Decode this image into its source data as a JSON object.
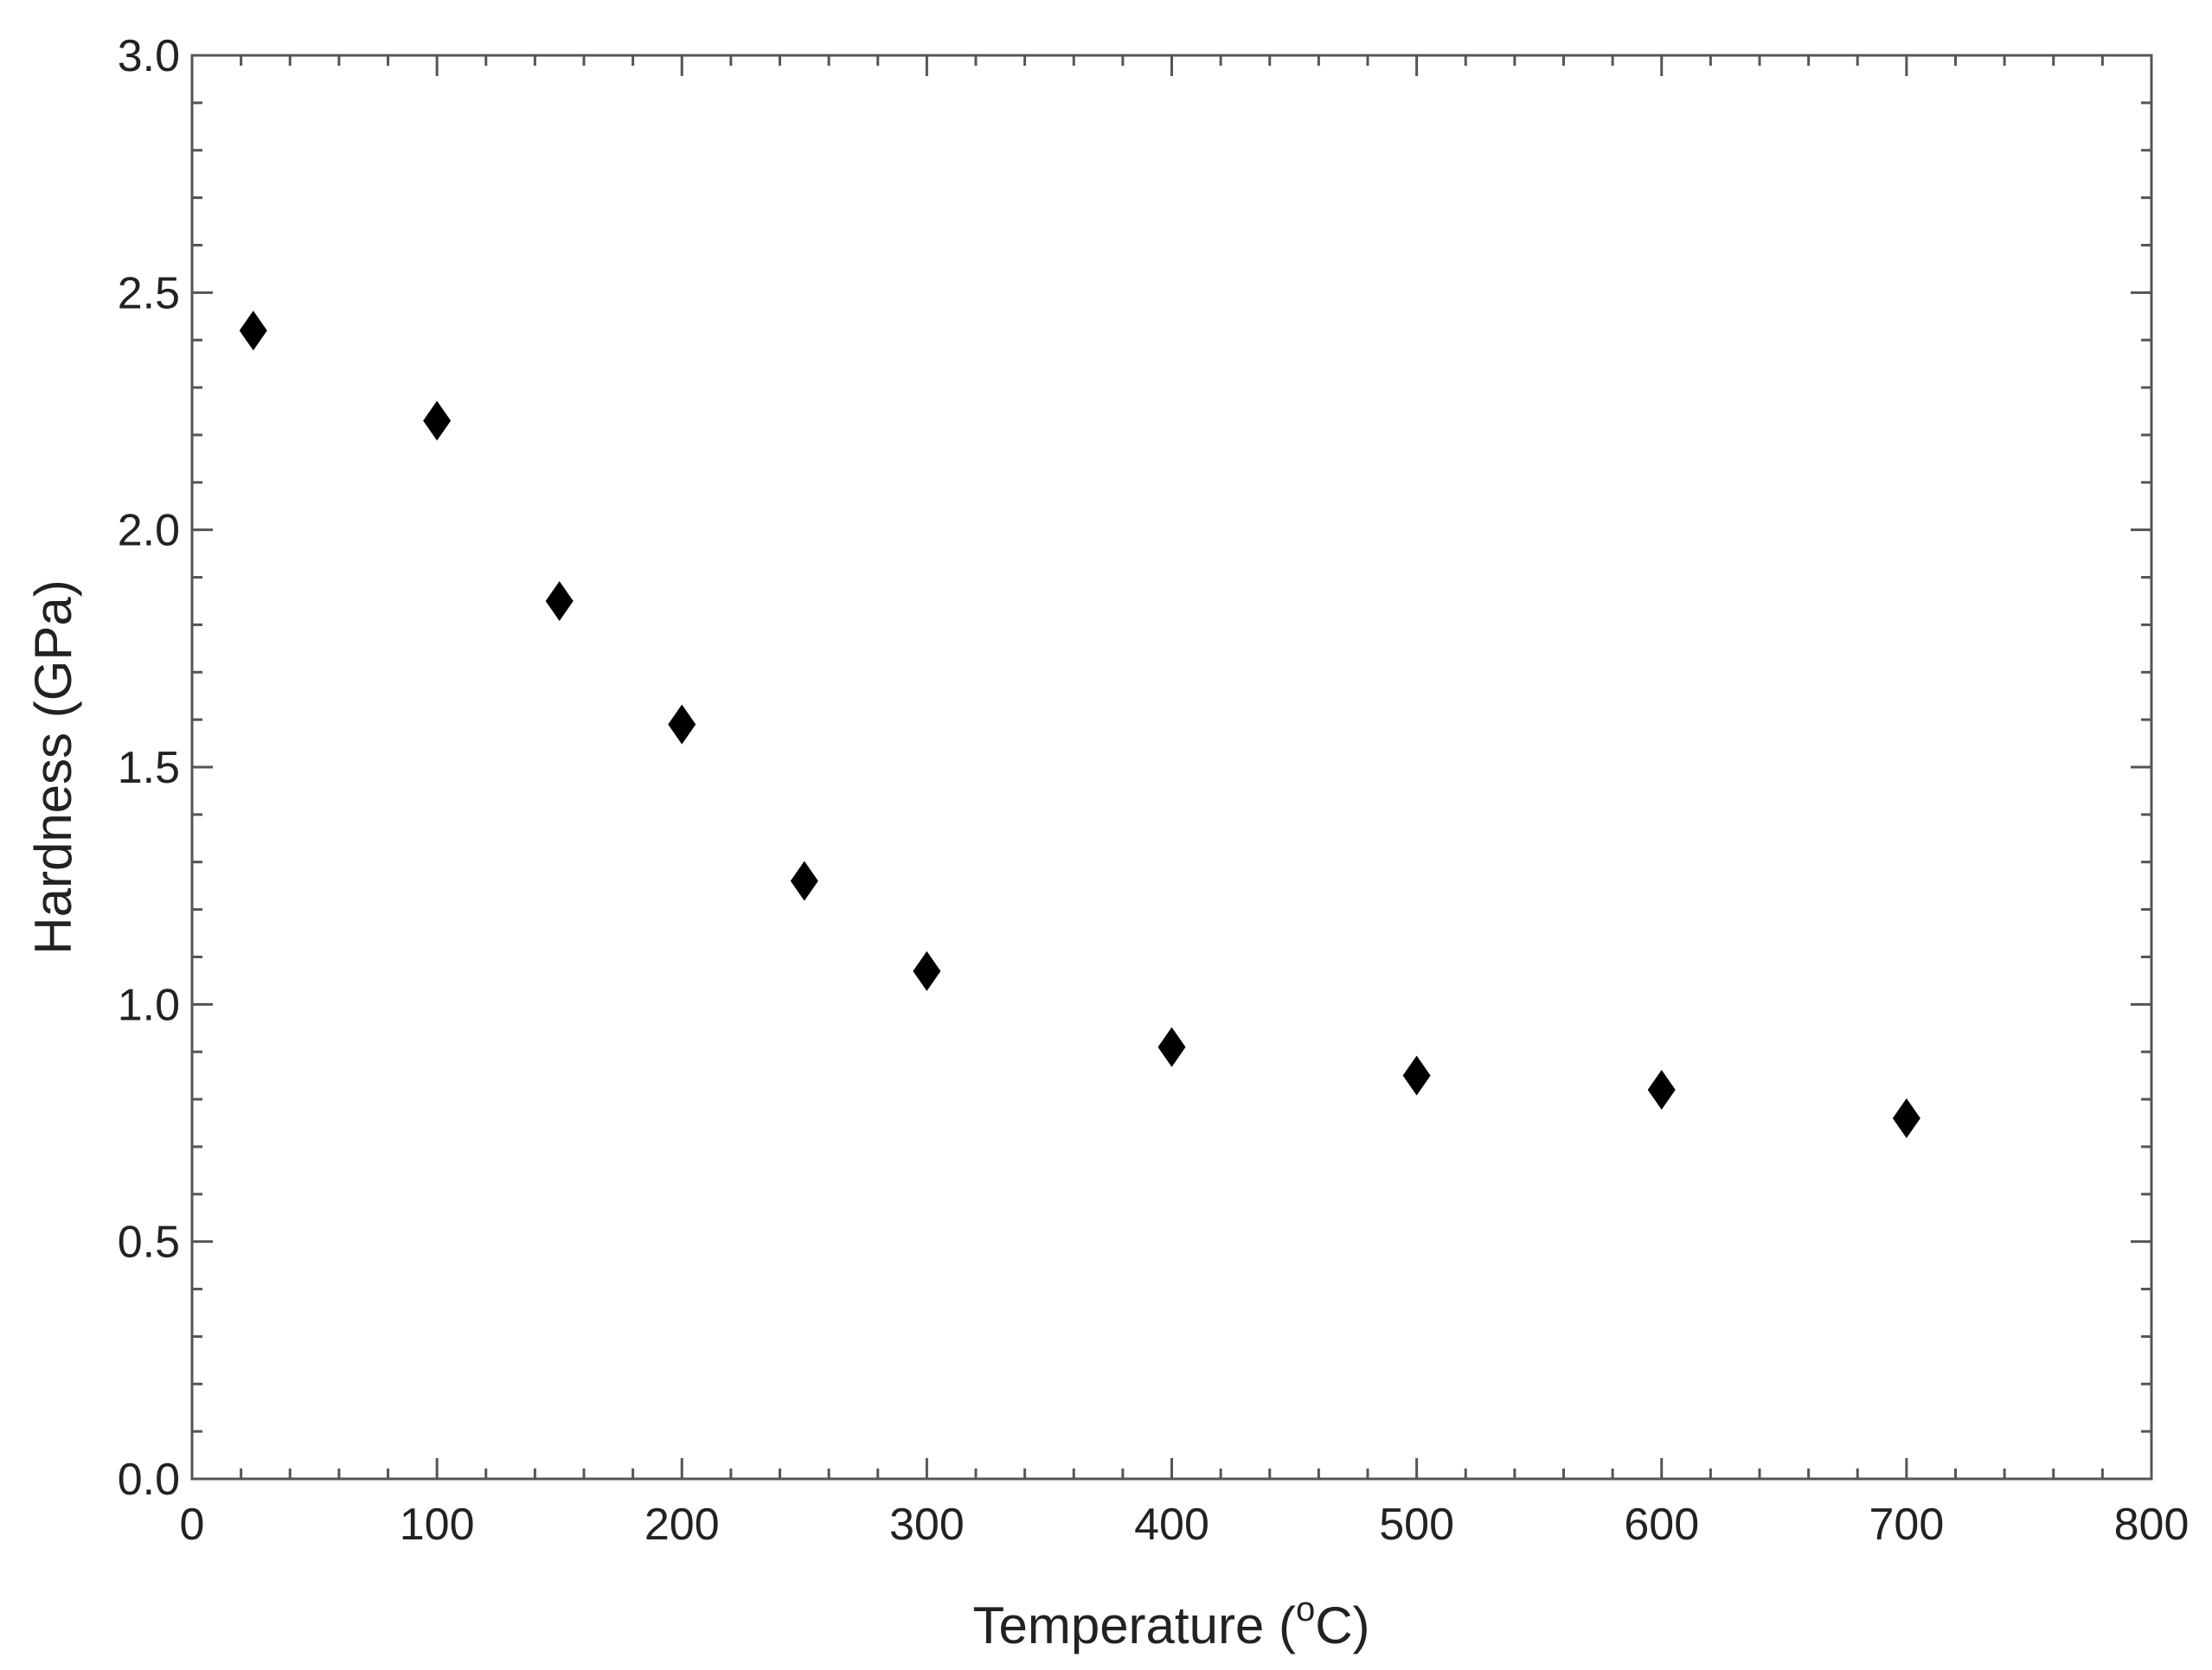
{
  "chart_data": {
    "type": "scatter",
    "title": "",
    "xlabel": "Temperature (",
    "xlabel_superscript": "o",
    "xlabel_suffix": "C)",
    "ylabel": "Hardness (GPa)",
    "xlim": [
      0,
      800
    ],
    "ylim": [
      0,
      3.0
    ],
    "x_ticks": [
      0,
      100,
      200,
      300,
      400,
      500,
      600,
      700,
      800
    ],
    "x_tick_labels": [
      "0",
      "100",
      "200",
      "300",
      "400",
      "500",
      "600",
      "700",
      "800"
    ],
    "y_ticks": [
      0,
      0.5,
      1.0,
      1.5,
      2.0,
      2.5,
      3.0
    ],
    "y_tick_labels": [
      "0.0",
      "0.5",
      "1.0",
      "1.5",
      "2.0",
      "2.5",
      "3.0"
    ],
    "x_minor_step": 20,
    "y_minor_step": 0.1,
    "grid": false,
    "marker": "diamond",
    "marker_color": "#000000",
    "axis_color": "#555555",
    "series": [
      {
        "x": [
          25,
          100,
          150,
          200,
          250,
          300,
          400,
          500,
          600,
          700
        ],
        "y": [
          2.42,
          2.23,
          1.85,
          1.59,
          1.26,
          1.07,
          0.91,
          0.85,
          0.82,
          0.76
        ]
      }
    ]
  }
}
